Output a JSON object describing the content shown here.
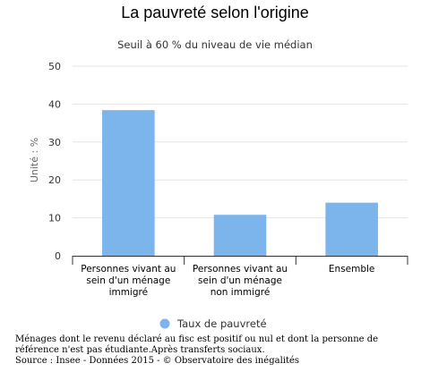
{
  "chart_data": {
    "type": "bar",
    "title": "La pauvreté selon l'origine",
    "subtitle": "Seuil à 60 % du niveau de vie médian",
    "ylabel": "Unité : %",
    "xlabel": "",
    "ylim": [
      0,
      50
    ],
    "yticks": [
      0,
      10,
      20,
      30,
      40,
      50
    ],
    "grid": true,
    "legend": "bottom",
    "categories": [
      [
        "Personnes vivant au",
        "sein d'un ménage",
        "immigré"
      ],
      [
        "Personnes vivant au",
        "sein d'un ménage",
        "non immigré"
      ],
      [
        "Ensemble"
      ]
    ],
    "series": [
      {
        "name": "Taux de pauvreté",
        "values": [
          38.4,
          10.8,
          14
        ],
        "color": "#7cb5ec"
      }
    ]
  },
  "footnote": {
    "lines": [
      "Ménages dont le revenu déclaré au fisc est positif ou nul et dont la personne de",
      "référence n'est pas étudiante.Après transferts sociaux.",
      "Source : Insee - Données 2015 - © Observatoire des inégalités"
    ]
  }
}
